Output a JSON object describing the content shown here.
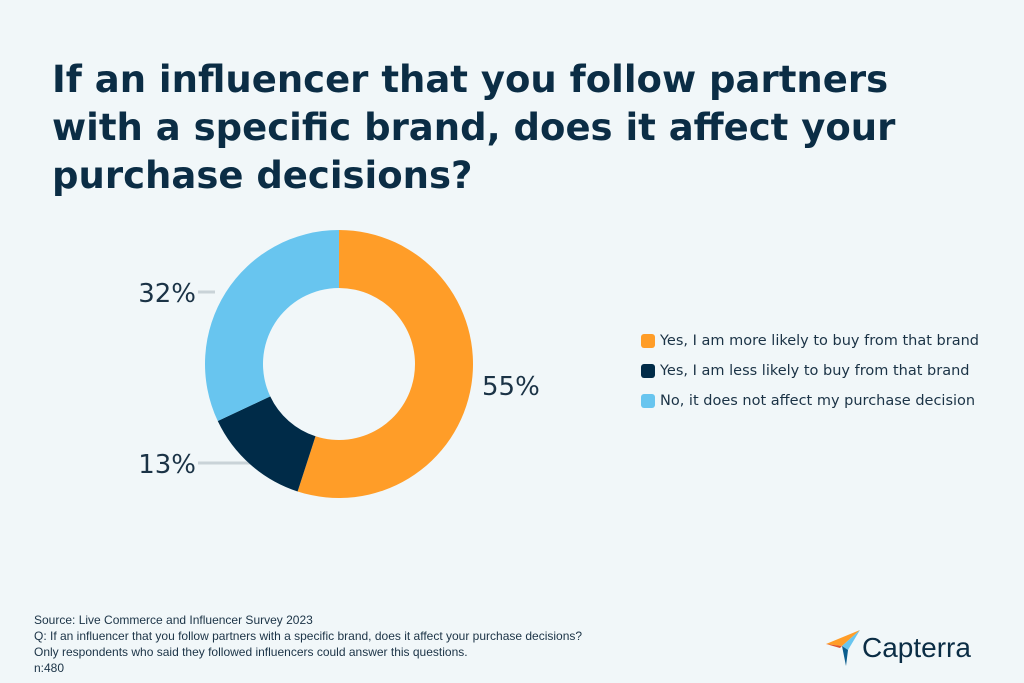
{
  "title": "If an influencer that you follow partners with a specific brand, does it affect your purchase decisions?",
  "chart_data": {
    "type": "pie",
    "variant": "donut",
    "categories": [
      "Yes, I am more likely to buy from that brand",
      "Yes, I am less likely to buy from that brand",
      "No, it does not affect my purchase decision"
    ],
    "values": [
      55,
      13,
      32
    ],
    "data_labels": [
      "55%",
      "13%",
      "32%"
    ],
    "colors": [
      "#ff9d28",
      "#002b48",
      "#68c5ef"
    ],
    "legend_position": "right"
  },
  "footer": {
    "source": "Source:  Live Commerce and Influencer Survey 2023",
    "question": "Q: If an influencer that you follow partners with a specific brand, does it affect your purchase decisions?",
    "note": "Only respondents who said they followed influencers could answer this questions.",
    "n": "n:480"
  },
  "logo": {
    "text": "Capterra"
  }
}
